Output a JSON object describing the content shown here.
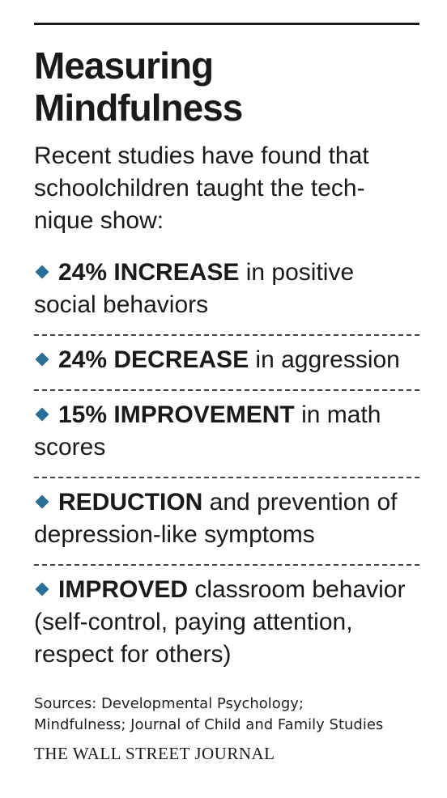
{
  "title_line1": "Measuring",
  "title_line2": "Mindfulness",
  "intro": "Recent studies have found that schoolchildren taught the tech-nique show:",
  "accent_color": "#2a6f97",
  "bullet_icon": "diamond-bullet",
  "findings": [
    {
      "highlight": "24% INCREASE",
      "text": " in positive social behaviors"
    },
    {
      "highlight": "24% DECREASE",
      "text": " in aggression"
    },
    {
      "highlight": "15% IMPROVEMENT",
      "text": " in math scores"
    },
    {
      "highlight": "REDUCTION",
      "text": " and prevention of depression-like symptoms"
    },
    {
      "highlight": "IMPROVED",
      "text": " classroom behavior (self-control, paying attention, respect for others)"
    }
  ],
  "sources_line1": "Sources: Developmental Psychology;",
  "sources_line2": "Mindfulness; Journal of Child and Family Studies",
  "publisher": "THE WALL STREET JOURNAL"
}
